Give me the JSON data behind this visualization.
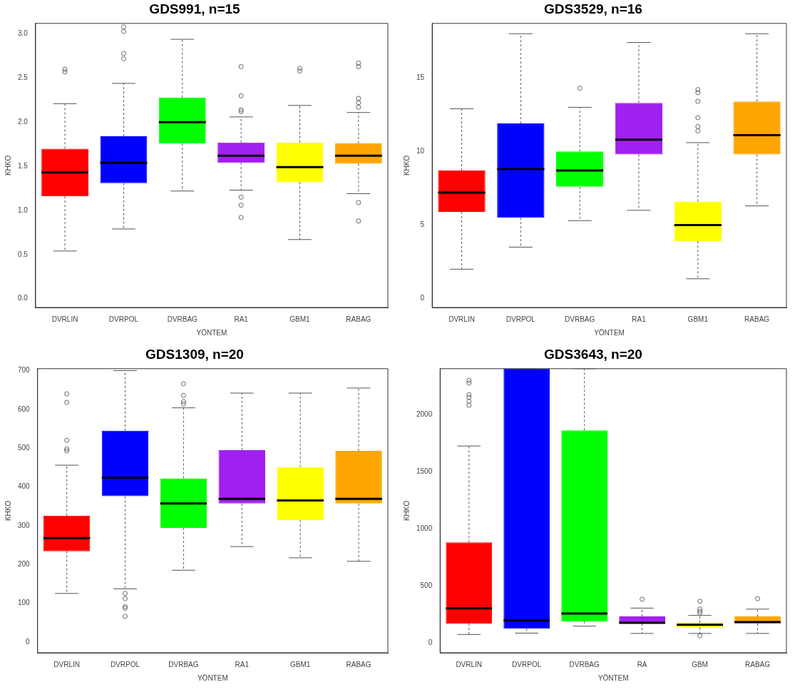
{
  "chart_data": [
    {
      "type": "box",
      "title": "GDS991, n=15",
      "xlabel": "YÖNTEM",
      "ylabel": "KHKO",
      "grid": false,
      "legend": false,
      "categories": [
        "DVRLIN",
        "DVRPOL",
        "DVRBAG",
        "RA1",
        "GBM1",
        "RABAG"
      ],
      "colors": [
        "#ff0000",
        "#0000ff",
        "#00ff00",
        "#a020f0",
        "#ffff00",
        "#ffa500"
      ],
      "ylim": [
        -0.1,
        3.12
      ],
      "yticks": [
        {
          "value": 0,
          "label": "0.0"
        },
        {
          "value": 0.5,
          "label": "0.5"
        },
        {
          "value": 1,
          "label": "1.0"
        },
        {
          "value": 1.5,
          "label": "1.5"
        },
        {
          "value": 2,
          "label": "2.0"
        },
        {
          "value": 2.5,
          "label": "2.5"
        },
        {
          "value": 3,
          "label": "3.0"
        }
      ],
      "boxes": [
        {
          "low": 0.54,
          "q1": 1.16,
          "median": 1.43,
          "q3": 1.7,
          "high": 2.21,
          "outliers": [
            2.6,
            2.57
          ]
        },
        {
          "low": 0.79,
          "q1": 1.31,
          "median": 1.54,
          "q3": 1.84,
          "high": 2.44,
          "outliers": [
            3.08,
            3.03,
            2.78,
            2.72
          ]
        },
        {
          "low": 1.22,
          "q1": 1.76,
          "median": 2.0,
          "q3": 2.28,
          "high": 2.94
        },
        {
          "low": 1.23,
          "q1": 1.54,
          "median": 1.62,
          "q3": 1.77,
          "high": 2.06,
          "outliers": [
            2.63,
            2.3,
            2.14,
            2.12,
            1.15,
            1.06,
            0.92
          ]
        },
        {
          "low": 0.67,
          "q1": 1.32,
          "median": 1.49,
          "q3": 1.77,
          "high": 2.19,
          "outliers": [
            2.61,
            2.58
          ]
        },
        {
          "low": 1.19,
          "q1": 1.53,
          "median": 1.62,
          "q3": 1.76,
          "high": 2.11,
          "outliers": [
            2.67,
            2.63,
            2.27,
            2.22,
            2.17,
            1.09,
            0.88
          ]
        }
      ]
    },
    {
      "type": "box",
      "title": "GDS3529, n=16",
      "xlabel": "YÖNTEM",
      "ylabel": "KHKO",
      "grid": false,
      "legend": false,
      "categories": [
        "DVRLIN",
        "DVRPOL",
        "DVRBAG",
        "RA1",
        "GBM1",
        "RABAG"
      ],
      "colors": [
        "#ff0000",
        "#0000ff",
        "#00ff00",
        "#a020f0",
        "#ffff00",
        "#ffa500"
      ],
      "ylim": [
        -0.6,
        18.7
      ],
      "yticks": [
        0,
        5,
        10,
        15
      ],
      "boxes": [
        {
          "low": 2.0,
          "q1": 5.9,
          "median": 7.2,
          "q3": 8.7,
          "high": 12.9
        },
        {
          "low": 3.5,
          "q1": 5.5,
          "median": 8.8,
          "q3": 11.9,
          "high": 18.0
        },
        {
          "low": 5.3,
          "q1": 7.6,
          "median": 8.7,
          "q3": 10.0,
          "high": 13.0,
          "outliers": [
            14.3
          ]
        },
        {
          "low": 6.0,
          "q1": 9.8,
          "median": 10.8,
          "q3": 13.3,
          "high": 17.4
        },
        {
          "low": 1.35,
          "q1": 3.9,
          "median": 5.0,
          "q3": 6.6,
          "high": 10.6,
          "outliers": [
            14.2,
            14.0,
            13.4,
            12.3,
            11.7,
            11.4
          ]
        },
        {
          "low": 6.3,
          "q1": 9.8,
          "median": 11.1,
          "q3": 13.4,
          "high": 18.0
        }
      ]
    },
    {
      "type": "box",
      "title": "GDS1309, n=20",
      "xlabel": "YÖNTEM",
      "ylabel": "KHKO",
      "grid": false,
      "legend": false,
      "categories": [
        "DVRLIN",
        "DVRPOL",
        "DVRBAG",
        "RA1",
        "GBM1",
        "RABAG"
      ],
      "colors": [
        "#ff0000",
        "#0000ff",
        "#00ff00",
        "#a020f0",
        "#ffff00",
        "#ffa500"
      ],
      "ylim": [
        -28,
        705
      ],
      "yticks": [
        0,
        100,
        200,
        300,
        400,
        500,
        600,
        700
      ],
      "boxes": [
        {
          "low": 125,
          "q1": 234,
          "median": 268,
          "q3": 326,
          "high": 456,
          "outliers": [
            640,
            618,
            520,
            498,
            493
          ]
        },
        {
          "low": 137,
          "q1": 376,
          "median": 424,
          "q3": 545,
          "high": 700,
          "outliers": [
            125,
            112,
            91,
            87,
            66
          ]
        },
        {
          "low": 185,
          "q1": 294,
          "median": 357,
          "q3": 422,
          "high": 604,
          "outliers": [
            666,
            636,
            620,
            614
          ]
        },
        {
          "low": 246,
          "q1": 357,
          "median": 369,
          "q3": 495,
          "high": 642
        },
        {
          "low": 217,
          "q1": 314,
          "median": 365,
          "q3": 451,
          "high": 642
        },
        {
          "low": 208,
          "q1": 357,
          "median": 369,
          "q3": 493,
          "high": 655
        }
      ]
    },
    {
      "type": "box",
      "title": "GDS3643, n=20",
      "xlabel": "YÖNTEM",
      "ylabel": "KHKO",
      "grid": false,
      "legend": false,
      "categories": [
        "DVRLIN",
        "DVRPOL",
        "DVRBAG",
        "RA",
        "GBM",
        "RABAG"
      ],
      "colors": [
        "#ff0000",
        "#0000ff",
        "#00ff00",
        "#a020f0",
        "#ffff00",
        "#ffa500"
      ],
      "ylim": [
        -87,
        2400
      ],
      "yticks": [
        0,
        500,
        1000,
        1500,
        2000
      ],
      "boxes": [
        {
          "low": 73,
          "q1": 169,
          "median": 302,
          "q3": 879,
          "high": 1723,
          "outliers": [
            2297,
            2275,
            2172,
            2149,
            2114,
            2080
          ]
        },
        {
          "low": 85,
          "q1": 124,
          "median": 195,
          "q3": 2400,
          "high": 2400
        },
        {
          "low": 146,
          "q1": 188,
          "median": 256,
          "q3": 1860,
          "high": 2400
        },
        {
          "low": 82,
          "q1": 169,
          "median": 176,
          "q3": 231,
          "high": 304,
          "outliers": [
            382
          ]
        },
        {
          "low": 82,
          "q1": 135,
          "median": 158,
          "q3": 176,
          "high": 240,
          "outliers": [
            364,
            295,
            277,
            261,
            62
          ]
        },
        {
          "low": 82,
          "q1": 169,
          "median": 181,
          "q3": 231,
          "high": 295,
          "outliers": [
            387
          ]
        }
      ]
    }
  ]
}
